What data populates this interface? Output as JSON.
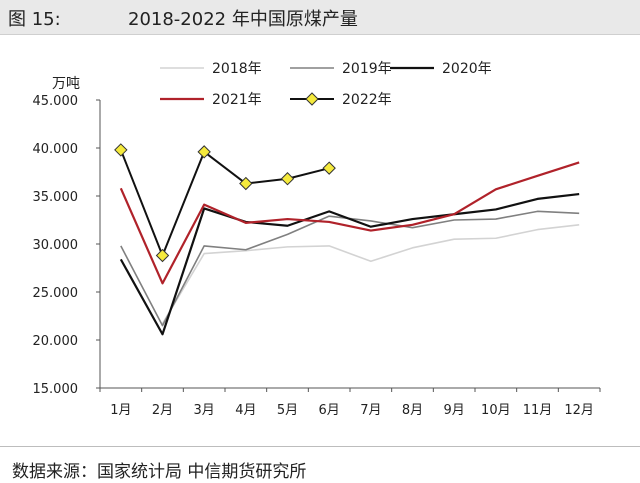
{
  "header": {
    "figure_label": "图 15:",
    "title": "2018-2022 年中国原煤产量"
  },
  "footer": {
    "source": "数据来源：国家统计局 中信期货研究所"
  },
  "chart_data": {
    "type": "line",
    "ylabel": "万吨",
    "ylim": [
      15000,
      45000
    ],
    "yticks": [
      "15.000",
      "20.000",
      "25.000",
      "30.000",
      "35.000",
      "40.000",
      "45.000"
    ],
    "categories": [
      "1月",
      "2月",
      "3月",
      "4月",
      "5月",
      "6月",
      "7月",
      "8月",
      "9月",
      "10月",
      "11月",
      "12月"
    ],
    "grid": false,
    "legend_position": "top",
    "series": [
      {
        "name": "2018年",
        "color": "#d3d3d3",
        "marker": "none",
        "values": [
          null,
          21700,
          29000,
          29300,
          29700,
          29800,
          28200,
          29600,
          30500,
          30600,
          31500,
          32000
        ]
      },
      {
        "name": "2019年",
        "color": "#808080",
        "marker": "none",
        "values": [
          29800,
          21500,
          29800,
          29400,
          31000,
          32900,
          32400,
          31700,
          32500,
          32600,
          33400,
          33200
        ]
      },
      {
        "name": "2020年",
        "color": "#111111",
        "marker": "none",
        "values": [
          28400,
          20600,
          33700,
          32300,
          31900,
          33400,
          31800,
          32600,
          33100,
          33600,
          34700,
          35200
        ]
      },
      {
        "name": "2021年",
        "color": "#b0222a",
        "marker": "none",
        "values": [
          35800,
          25900,
          34100,
          32200,
          32600,
          32300,
          31400,
          32000,
          33100,
          35700,
          37100,
          38500
        ]
      },
      {
        "name": "2022年",
        "color": "#111111",
        "marker": "diamond",
        "marker_fill": "#f5ea3c",
        "values": [
          39800,
          28800,
          39600,
          36300,
          36800,
          37900,
          null,
          null,
          null,
          null,
          null,
          null
        ]
      }
    ]
  }
}
